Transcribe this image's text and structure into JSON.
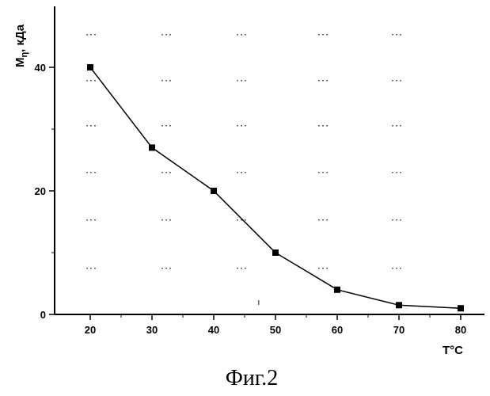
{
  "chart_data": {
    "type": "line",
    "title": "",
    "xlabel": "T°C",
    "ylabel": "M",
    "ylabel_subscript": "η",
    "ylabel_suffix": ", кДа",
    "x": [
      20,
      30,
      40,
      50,
      60,
      70,
      80
    ],
    "series": [
      {
        "name": "Mη",
        "values": [
          40,
          27,
          20,
          10,
          4,
          1.5,
          1
        ]
      }
    ],
    "xlim": [
      15,
      85
    ],
    "ylim": [
      0,
      50
    ],
    "xticks": [
      20,
      30,
      40,
      50,
      60,
      70,
      80
    ],
    "yticks": [
      0,
      20,
      40
    ],
    "grid": false,
    "legend": "none",
    "caption": "Фиг.2",
    "marker": "square",
    "line_color": "#000000"
  }
}
